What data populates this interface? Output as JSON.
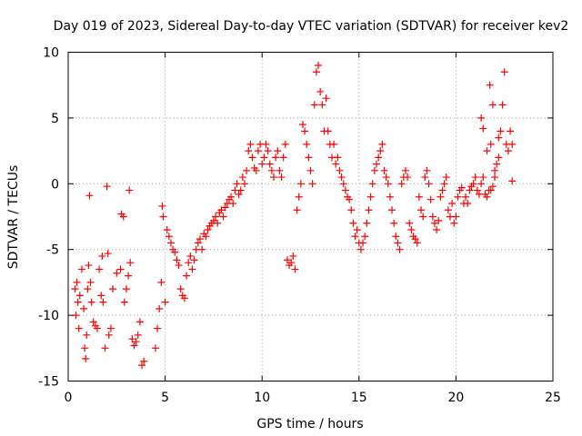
{
  "chart_data": {
    "type": "scatter",
    "title": "Day 019 of 2023, Sidereal Day-to-day VTEC variation (SDTVAR) for receiver kev2",
    "xlabel": "GPS time / hours",
    "ylabel": "SDTVAR / TECUs",
    "xlim": [
      0,
      25
    ],
    "ylim": [
      -15,
      10
    ],
    "xticks": [
      0,
      5,
      10,
      15,
      20,
      25
    ],
    "yticks": [
      -15,
      -10,
      -5,
      0,
      5,
      10
    ],
    "grid": true,
    "marker": "+",
    "color": "#ff0000",
    "series": [
      {
        "name": "SDTVAR",
        "points": [
          [
            0.35,
            -8
          ],
          [
            0.4,
            -10
          ],
          [
            0.45,
            -7.5
          ],
          [
            0.5,
            -9
          ],
          [
            0.55,
            -11
          ],
          [
            0.6,
            -8.5
          ],
          [
            0.7,
            -6.5
          ],
          [
            0.8,
            -9.5
          ],
          [
            0.85,
            -12.5
          ],
          [
            0.9,
            -13.3
          ],
          [
            0.95,
            -11.5
          ],
          [
            1.0,
            -8
          ],
          [
            1.05,
            -6.2
          ],
          [
            1.1,
            -0.9
          ],
          [
            1.15,
            -7.5
          ],
          [
            1.2,
            -9
          ],
          [
            1.3,
            -10.5
          ],
          [
            1.4,
            -10.8
          ],
          [
            1.5,
            -11
          ],
          [
            1.6,
            -6.5
          ],
          [
            1.7,
            -8.5
          ],
          [
            1.75,
            -5.5
          ],
          [
            1.8,
            -9
          ],
          [
            1.9,
            -12.5
          ],
          [
            2.0,
            -0.2
          ],
          [
            2.05,
            -5.3
          ],
          [
            2.1,
            -11.5
          ],
          [
            2.2,
            -11
          ],
          [
            2.3,
            -8
          ],
          [
            2.5,
            -6.8
          ],
          [
            2.7,
            -6.5
          ],
          [
            2.75,
            -2.3
          ],
          [
            2.85,
            -2.5
          ],
          [
            2.9,
            -9
          ],
          [
            3.0,
            -8
          ],
          [
            3.1,
            -7
          ],
          [
            3.15,
            -0.5
          ],
          [
            3.2,
            -6
          ],
          [
            3.3,
            -11.8
          ],
          [
            3.4,
            -12.3
          ],
          [
            3.5,
            -12
          ],
          [
            3.6,
            -11.5
          ],
          [
            3.7,
            -10.5
          ],
          [
            3.8,
            -13.8
          ],
          [
            3.9,
            -13.5
          ],
          [
            4.5,
            -12.5
          ],
          [
            4.6,
            -11
          ],
          [
            4.7,
            -9.5
          ],
          [
            4.8,
            -7.5
          ],
          [
            4.85,
            -1.7
          ],
          [
            4.9,
            -2.5
          ],
          [
            5.0,
            -9
          ],
          [
            5.1,
            -3.5
          ],
          [
            5.2,
            -4
          ],
          [
            5.3,
            -4.5
          ],
          [
            5.4,
            -5
          ],
          [
            5.5,
            -5.2
          ],
          [
            5.6,
            -5.8
          ],
          [
            5.7,
            -6.2
          ],
          [
            5.8,
            -8
          ],
          [
            5.9,
            -8.5
          ],
          [
            6.0,
            -8.7
          ],
          [
            6.1,
            -7
          ],
          [
            6.2,
            -6
          ],
          [
            6.3,
            -5.5
          ],
          [
            6.4,
            -6.5
          ],
          [
            6.5,
            -5.8
          ],
          [
            6.6,
            -5
          ],
          [
            6.7,
            -4.5
          ],
          [
            6.8,
            -4.2
          ],
          [
            6.9,
            -5
          ],
          [
            7.0,
            -3.8
          ],
          [
            7.1,
            -4
          ],
          [
            7.2,
            -3.5
          ],
          [
            7.3,
            -3.2
          ],
          [
            7.4,
            -3
          ],
          [
            7.5,
            -2.8
          ],
          [
            7.6,
            -2.5
          ],
          [
            7.7,
            -3
          ],
          [
            7.8,
            -2.2
          ],
          [
            7.9,
            -2
          ],
          [
            8.0,
            -2.5
          ],
          [
            8.1,
            -1.8
          ],
          [
            8.2,
            -1.5
          ],
          [
            8.3,
            -1.2
          ],
          [
            8.4,
            -1
          ],
          [
            8.5,
            -1.5
          ],
          [
            8.6,
            -0.5
          ],
          [
            8.7,
            0
          ],
          [
            8.8,
            -0.8
          ],
          [
            8.9,
            -0.5
          ],
          [
            9.0,
            0.5
          ],
          [
            9.1,
            0
          ],
          [
            9.2,
            1
          ],
          [
            9.3,
            2.5
          ],
          [
            9.4,
            3
          ],
          [
            9.5,
            2
          ],
          [
            9.6,
            1.2
          ],
          [
            9.7,
            1
          ],
          [
            9.8,
            2.5
          ],
          [
            9.9,
            3
          ],
          [
            10.0,
            1.5
          ],
          [
            10.1,
            2
          ],
          [
            10.2,
            3
          ],
          [
            10.3,
            2.5
          ],
          [
            10.4,
            1.5
          ],
          [
            10.5,
            1
          ],
          [
            10.6,
            0.5
          ],
          [
            10.7,
            2
          ],
          [
            10.8,
            2.5
          ],
          [
            10.9,
            1
          ],
          [
            11.0,
            0.5
          ],
          [
            11.1,
            2
          ],
          [
            11.2,
            3
          ],
          [
            11.3,
            -5.8
          ],
          [
            11.4,
            -6.2
          ],
          [
            11.5,
            -6
          ],
          [
            11.6,
            -5.5
          ],
          [
            11.7,
            -6.5
          ],
          [
            11.8,
            -2
          ],
          [
            11.9,
            -1
          ],
          [
            12.0,
            0
          ],
          [
            12.1,
            4.5
          ],
          [
            12.2,
            4
          ],
          [
            12.3,
            3
          ],
          [
            12.4,
            2
          ],
          [
            12.5,
            1
          ],
          [
            12.6,
            0
          ],
          [
            12.7,
            6
          ],
          [
            12.8,
            8.5
          ],
          [
            12.9,
            9
          ],
          [
            13.0,
            7
          ],
          [
            13.1,
            6
          ],
          [
            13.2,
            4
          ],
          [
            13.3,
            6.5
          ],
          [
            13.4,
            4
          ],
          [
            13.5,
            3
          ],
          [
            13.6,
            2
          ],
          [
            13.7,
            3
          ],
          [
            13.8,
            1.5
          ],
          [
            13.9,
            2
          ],
          [
            14.0,
            1
          ],
          [
            14.1,
            0.5
          ],
          [
            14.2,
            0
          ],
          [
            14.3,
            -0.5
          ],
          [
            14.4,
            -1
          ],
          [
            14.5,
            -1.2
          ],
          [
            14.6,
            -2
          ],
          [
            14.7,
            -3
          ],
          [
            14.8,
            -4
          ],
          [
            14.9,
            -3.5
          ],
          [
            15.0,
            -4.5
          ],
          [
            15.1,
            -5
          ],
          [
            15.2,
            -4.5
          ],
          [
            15.3,
            -4
          ],
          [
            15.4,
            -3
          ],
          [
            15.5,
            -2
          ],
          [
            15.6,
            -1
          ],
          [
            15.7,
            0
          ],
          [
            15.8,
            1
          ],
          [
            15.9,
            1.5
          ],
          [
            16.0,
            2
          ],
          [
            16.1,
            2.5
          ],
          [
            16.2,
            3
          ],
          [
            16.3,
            1
          ],
          [
            16.4,
            0.5
          ],
          [
            16.5,
            0
          ],
          [
            16.6,
            -1
          ],
          [
            16.7,
            -2
          ],
          [
            16.8,
            -3
          ],
          [
            16.9,
            -4
          ],
          [
            17.0,
            -4.5
          ],
          [
            17.1,
            -5
          ],
          [
            17.2,
            0
          ],
          [
            17.3,
            0.5
          ],
          [
            17.4,
            1
          ],
          [
            17.5,
            0.5
          ],
          [
            17.6,
            -3
          ],
          [
            17.7,
            -3.5
          ],
          [
            17.8,
            -4
          ],
          [
            17.9,
            -4.2
          ],
          [
            18.0,
            -4.5
          ],
          [
            18.1,
            -1
          ],
          [
            18.2,
            -2
          ],
          [
            18.3,
            -2.5
          ],
          [
            18.4,
            0.5
          ],
          [
            18.5,
            1
          ],
          [
            18.6,
            0
          ],
          [
            18.7,
            -1.2
          ],
          [
            18.8,
            -2.5
          ],
          [
            18.9,
            -3
          ],
          [
            19.0,
            -3.5
          ],
          [
            19.1,
            -2.8
          ],
          [
            19.2,
            -1
          ],
          [
            19.3,
            -0.5
          ],
          [
            19.4,
            0
          ],
          [
            19.5,
            0.5
          ],
          [
            19.6,
            -2
          ],
          [
            19.7,
            -2.5
          ],
          [
            19.8,
            -1.5
          ],
          [
            19.9,
            -3
          ],
          [
            20.0,
            -2.5
          ],
          [
            20.1,
            -1
          ],
          [
            20.2,
            -0.5
          ],
          [
            20.3,
            -0.3
          ],
          [
            20.4,
            -1.5
          ],
          [
            20.5,
            -1
          ],
          [
            20.6,
            -1.5
          ],
          [
            20.7,
            -0.5
          ],
          [
            20.8,
            -0.2
          ],
          [
            20.9,
            0
          ],
          [
            21.0,
            0.5
          ],
          [
            21.1,
            -0.5
          ],
          [
            21.2,
            -0.8
          ],
          [
            21.3,
            0
          ],
          [
            21.4,
            0.5
          ],
          [
            21.5,
            -0.8
          ],
          [
            21.6,
            -1
          ],
          [
            21.7,
            -0.5
          ],
          [
            21.8,
            -0.5
          ],
          [
            21.9,
            -0.2
          ],
          [
            22.0,
            0.5
          ],
          [
            22.1,
            1.5
          ],
          [
            22.2,
            2
          ],
          [
            22.3,
            4
          ],
          [
            22.4,
            6
          ],
          [
            22.5,
            8.5
          ],
          [
            22.6,
            3
          ],
          [
            22.7,
            2.5
          ],
          [
            22.8,
            4
          ],
          [
            22.9,
            3
          ],
          [
            22.9,
            0.2
          ],
          [
            21.3,
            5
          ],
          [
            21.4,
            4.2
          ],
          [
            21.6,
            2.5
          ],
          [
            21.8,
            3
          ],
          [
            22.0,
            1
          ],
          [
            22.2,
            3.5
          ],
          [
            21.9,
            6
          ],
          [
            21.75,
            7.5
          ]
        ]
      }
    ]
  }
}
